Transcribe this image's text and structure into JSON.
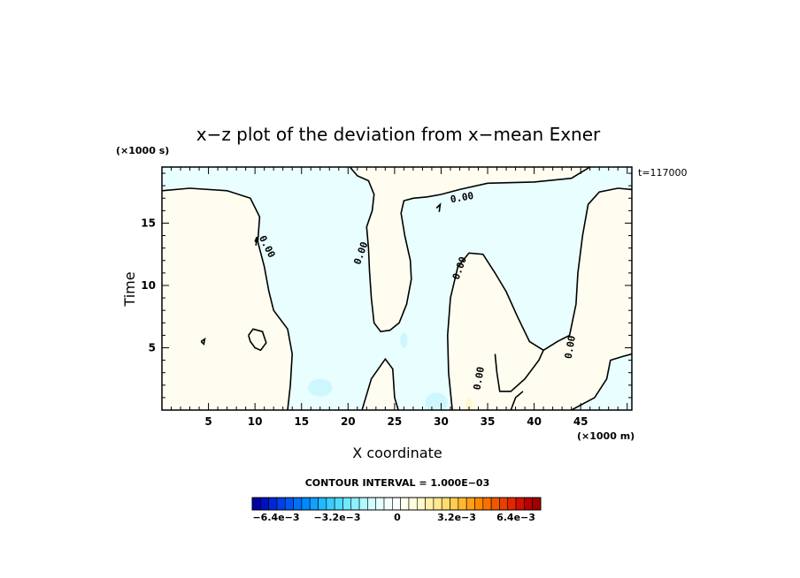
{
  "chart_data": {
    "type": "heatmap",
    "title": "x−z plot of the deviation from x−mean Exner",
    "xlabel": "X coordinate",
    "ylabel": "Time",
    "x_unit": "(×1000 m)",
    "y_unit": "(×1000 s)",
    "time_label": "t=117000",
    "xlim": [
      0,
      50.5
    ],
    "ylim": [
      0,
      19.5
    ],
    "x_ticks": [
      5,
      10,
      15,
      20,
      25,
      30,
      35,
      40,
      45
    ],
    "y_ticks": [
      5,
      10,
      15
    ],
    "contour_label": "0.00",
    "contour_interval_text": "CONTOUR INTERVAL = 1.000E−03",
    "colorbar": {
      "tick_labels": [
        "−6.4e−3",
        "−3.2e−3",
        "0",
        "3.2e−3",
        "6.4e−3"
      ],
      "colors": [
        "#0000a0",
        "#0010c0",
        "#0028d8",
        "#0040e8",
        "#0058f0",
        "#0070f8",
        "#0088ff",
        "#10a0ff",
        "#20b8ff",
        "#38ccff",
        "#50dcff",
        "#70e8ff",
        "#90f0ff",
        "#b0f8ff",
        "#d0fcff",
        "#e8ffff",
        "#f4ffff",
        "#ffffff",
        "#fffff0",
        "#fffce0",
        "#fff8c8",
        "#fff0a8",
        "#ffe890",
        "#ffdc70",
        "#ffcc50",
        "#ffb830",
        "#ffa018",
        "#ff8800",
        "#f87000",
        "#f05800",
        "#e84000",
        "#e02800",
        "#d01000",
        "#b80000",
        "#a00000"
      ]
    },
    "regions": {
      "negative_fill": "#e8feff",
      "positive_fill": "#fffdf0"
    }
  }
}
